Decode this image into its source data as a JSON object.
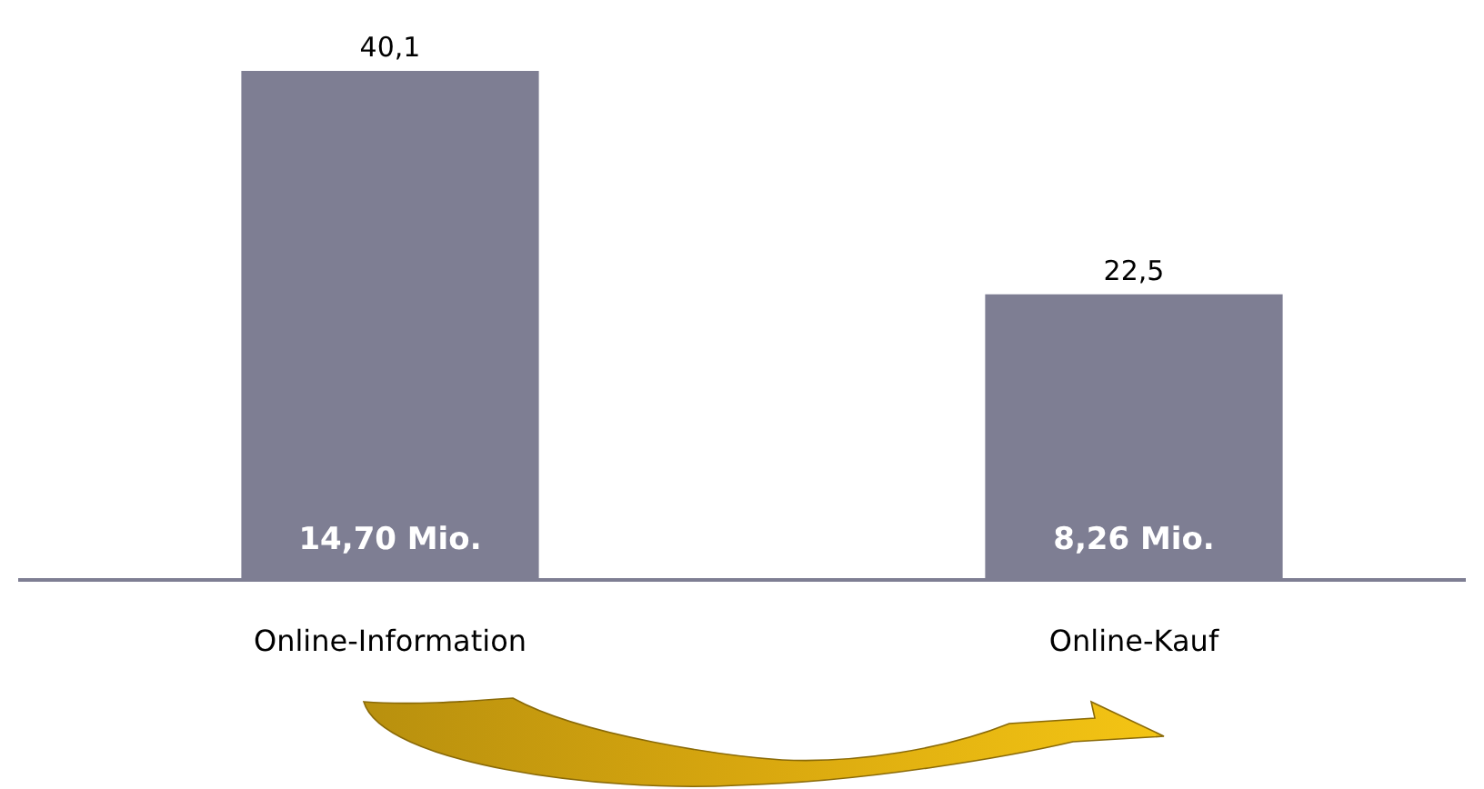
{
  "chart_data": {
    "type": "bar",
    "categories": [
      "Online-Information",
      "Online-Kauf"
    ],
    "values": [
      40.1,
      22.5
    ],
    "color": "#7e7e93",
    "value_labels": [
      "40,1",
      "22,5"
    ],
    "annotations": [
      "14,70 Mio.",
      "8,26 Mio."
    ]
  }
}
